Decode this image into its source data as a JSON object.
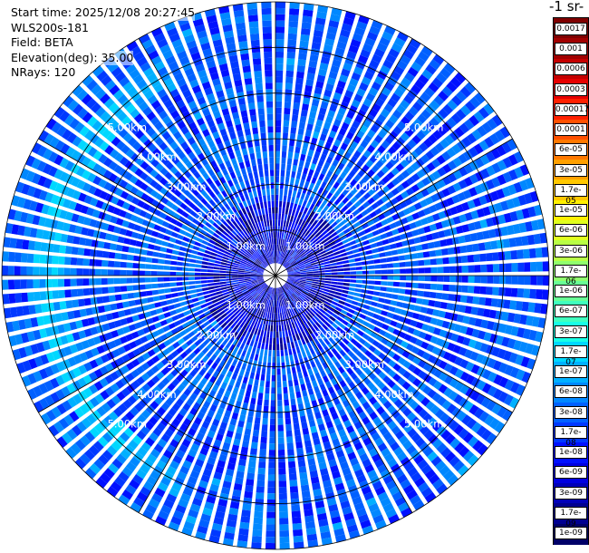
{
  "info": {
    "start_time": "Start time: 2025/12/08 20:27:45",
    "device": "WLS200s-181",
    "field": "Field: BETA",
    "elevation": "Elevation(deg): 35.00",
    "nrays": "NRays: 120"
  },
  "colorbar": {
    "title": "-1 sr-",
    "labels": [
      "0.0017",
      "0.001",
      "0.0006",
      "0.0003",
      "0.00017",
      "0.0001",
      "6e-05",
      "3e-05",
      "1.7e-05",
      "1e-05",
      "6e-06",
      "3e-06",
      "1.7e-06",
      "1e-06",
      "6e-07",
      "3e-07",
      "1.7e-07",
      "1e-07",
      "6e-08",
      "3e-08",
      "1.7e-08",
      "1e-08",
      "6e-09",
      "3e-09",
      "1.7e-09",
      "1e-09"
    ],
    "colors": [
      "#7f0000",
      "#a00000",
      "#c40000",
      "#e60000",
      "#ff2000",
      "#ff5000",
      "#ff7800",
      "#ffa000",
      "#ffc800",
      "#fff000",
      "#e0ff1e",
      "#b8ff46",
      "#90ff6e",
      "#68ff96",
      "#40ffbe",
      "#18ffe6",
      "#00d8ff",
      "#00b0ff",
      "#0088ff",
      "#0060ff",
      "#0038ff",
      "#0010ff",
      "#0000e0",
      "#0000b8",
      "#000090",
      "#000068"
    ]
  },
  "chart_data": {
    "type": "heatmap",
    "projection": "polar PPI",
    "field": "BETA",
    "nrays": 120,
    "elevation_deg": 35.0,
    "range_ring_labels_km": [
      "1.00km",
      "2.00km",
      "3.00km",
      "4.00km",
      "5.00km"
    ],
    "range_rings_km": [
      1,
      2,
      3,
      4,
      5,
      6
    ],
    "max_range_km": 6.0,
    "color_scale": "log",
    "value_range": [
      1e-09,
      0.0017
    ],
    "background_level": 3e-08,
    "features": [
      {
        "description": "enhanced backscatter arc",
        "range_km": [
          4.6,
          5.3
        ],
        "azimuth_deg": [
          200,
          340
        ],
        "value": 1e-07
      }
    ]
  }
}
